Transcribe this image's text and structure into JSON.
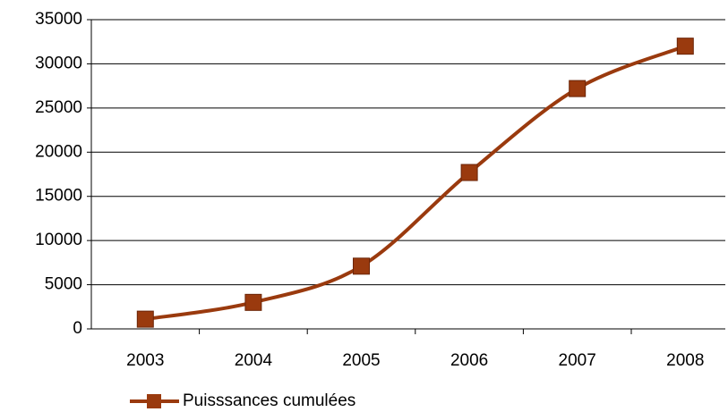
{
  "chart_data": {
    "type": "line",
    "categories": [
      "2003",
      "2004",
      "2005",
      "2006",
      "2007",
      "2008"
    ],
    "series": [
      {
        "name": "Puisssances cumulées",
        "color": "#9a3a0e",
        "values": [
          1100,
          3000,
          7100,
          17700,
          27200,
          32000
        ]
      }
    ],
    "ylim": [
      0,
      35000
    ],
    "yticks": [
      0,
      5000,
      10000,
      15000,
      20000,
      25000,
      30000,
      35000
    ],
    "grid": true,
    "legend": "bottom",
    "smooth": true
  }
}
